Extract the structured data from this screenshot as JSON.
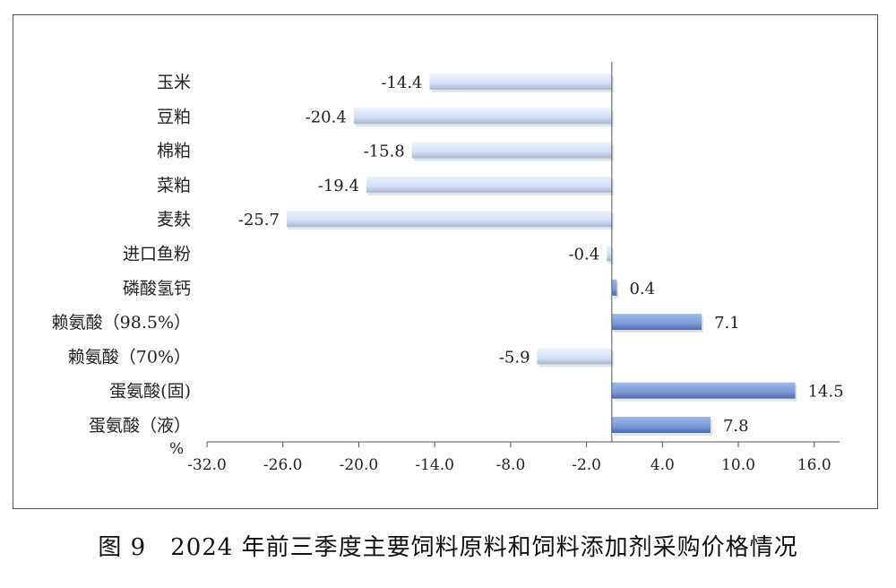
{
  "chart_data": {
    "type": "bar",
    "orientation": "horizontal",
    "categories": [
      "玉米",
      "豆粕",
      "棉粕",
      "菜粕",
      "麦麸",
      "进口鱼粉",
      "磷酸氢钙",
      "赖氨酸（98.5%）",
      "赖氨酸（70%）",
      "蛋氨酸(固)",
      "蛋氨酸（液）"
    ],
    "values": [
      -14.4,
      -20.4,
      -15.8,
      -19.4,
      -25.7,
      -0.4,
      0.4,
      7.1,
      -5.9,
      14.5,
      7.8
    ],
    "value_labels": [
      "-14.4",
      "-20.4",
      "-15.8",
      "-19.4",
      "-25.7",
      "-0.4",
      "0.4",
      "7.1",
      "-5.9",
      "14.5",
      "7.8"
    ],
    "x_ticks": [
      "-32.0",
      "-26.0",
      "-20.0",
      "-14.0",
      "-8.0",
      "-2.0",
      "4.0",
      "10.0",
      "16.0"
    ],
    "xlim": [
      -32,
      18
    ],
    "unit_label": "%",
    "colors": {
      "negative": "#d6e1f5",
      "positive": "#7f9fde",
      "axis": "#555555"
    },
    "grid": false,
    "legend": "none"
  },
  "caption": "图 9　2024 年前三季度主要饲料原料和饲料添加剂采购价格情况"
}
